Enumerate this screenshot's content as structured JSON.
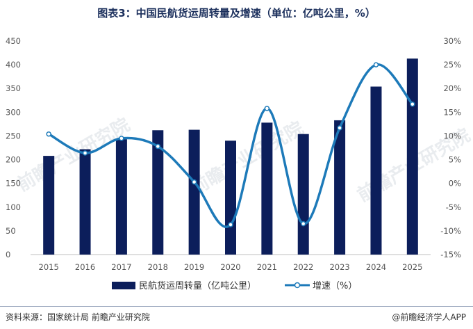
{
  "title": "图表3：中国民航货运周转量及增速（单位：亿吨公里，%）",
  "source": "资料来源：国家统计局 前瞻产业研究院",
  "brand": "@前瞻经济学人APP",
  "watermark": "前瞻产业研究院",
  "colors": {
    "bar": "#0c1e5b",
    "line": "#1d7ab9",
    "title": "#1b2f5c"
  },
  "chart_data": {
    "type": "bar",
    "categories": [
      "2015",
      "2016",
      "2017",
      "2018",
      "2019",
      "2020",
      "2021",
      "2022",
      "2023",
      "2024",
      "2025"
    ],
    "series": [
      {
        "name": "民航货运周转量（亿吨公里）",
        "type": "bar",
        "axis": "left",
        "values": [
          208,
          222,
          243,
          262,
          263,
          240,
          278,
          254,
          283,
          354,
          413
        ]
      },
      {
        "name": "增速（%）",
        "type": "line",
        "axis": "right",
        "values": [
          10.4,
          6.4,
          9.5,
          7.8,
          0.3,
          -8.7,
          15.8,
          -8.5,
          11.7,
          25.0,
          16.7
        ]
      }
    ],
    "y_left": {
      "lim": [
        0,
        450
      ],
      "ticks": [
        "0",
        "50",
        "100",
        "150",
        "200",
        "250",
        "300",
        "350",
        "400",
        "450"
      ]
    },
    "y_right": {
      "lim": [
        -15,
        30
      ],
      "ticks": [
        "-15%",
        "-10%",
        "-5%",
        "0%",
        "5%",
        "10%",
        "15%",
        "20%",
        "25%",
        "30%"
      ]
    },
    "legend_position": "bottom",
    "grid": false
  }
}
